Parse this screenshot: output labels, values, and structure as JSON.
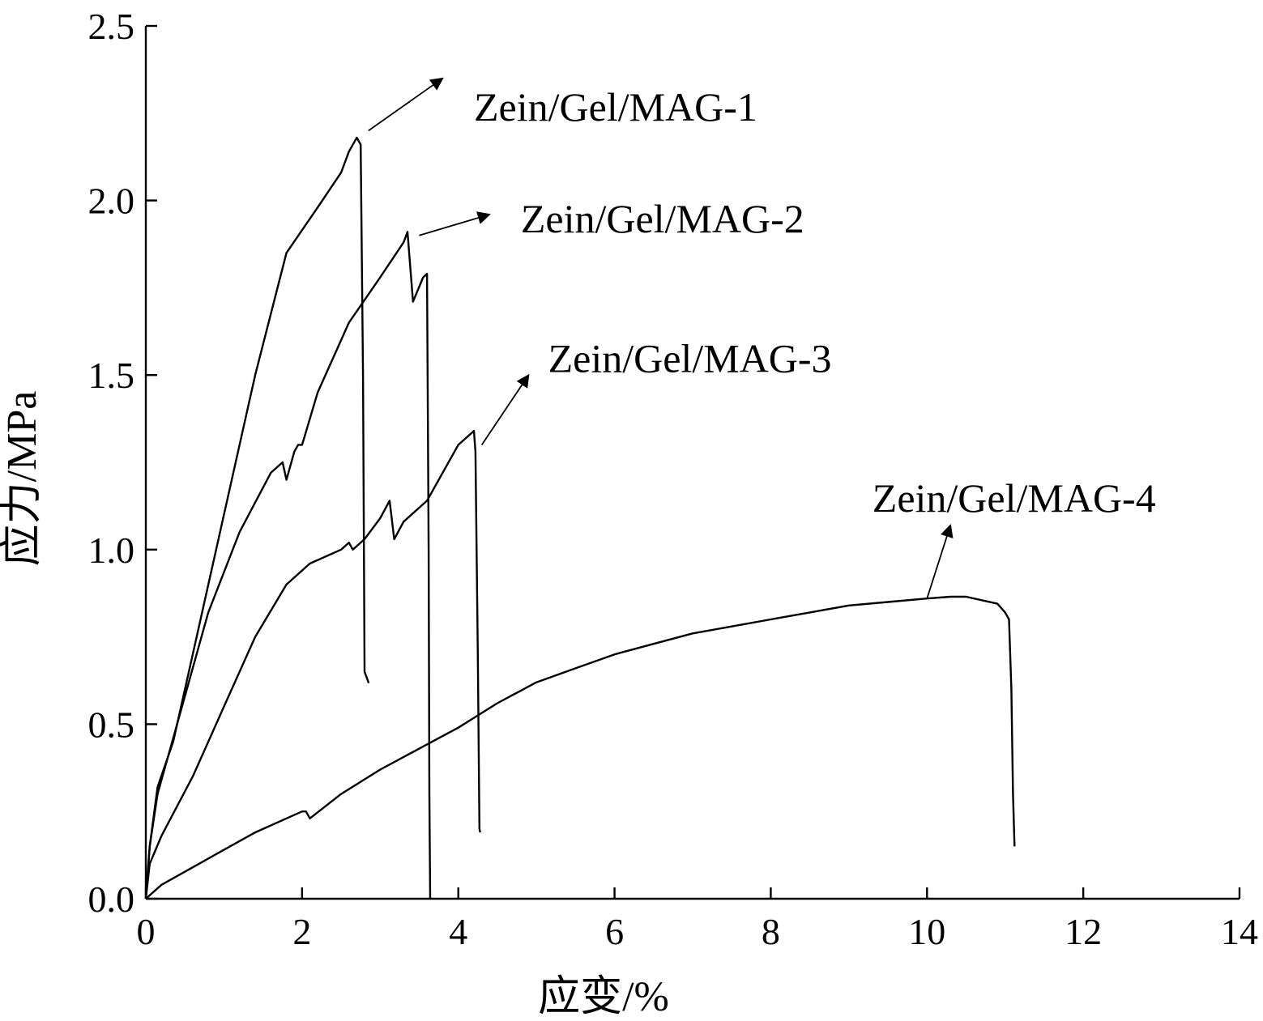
{
  "chart_data": {
    "type": "line",
    "xlabel": "应变/%",
    "ylabel": "应力/MPa",
    "xlim": [
      0,
      14
    ],
    "ylim": [
      0,
      2.5
    ],
    "xticks": [
      0,
      2,
      4,
      6,
      8,
      10,
      12,
      14
    ],
    "yticks": [
      0.0,
      0.5,
      1.0,
      1.5,
      2.0,
      2.5
    ],
    "xtick_labels": [
      "0",
      "2",
      "4",
      "6",
      "8",
      "10",
      "12",
      "14"
    ],
    "ytick_labels": [
      "0.0",
      "0.5",
      "1.0",
      "1.5",
      "2.0",
      "2.5"
    ],
    "grid": false,
    "series": [
      {
        "name": "Zein/Gel/MAG-1",
        "x": [
          0,
          0.05,
          0.15,
          0.35,
          0.6,
          1.0,
          1.4,
          1.8,
          2.2,
          2.5,
          2.6,
          2.7,
          2.75,
          2.78,
          2.8,
          2.85,
          2.86
        ],
        "y": [
          0,
          0.15,
          0.32,
          0.45,
          0.7,
          1.1,
          1.5,
          1.85,
          1.98,
          2.08,
          2.14,
          2.18,
          2.16,
          1.5,
          0.65,
          0.62,
          0.62
        ]
      },
      {
        "name": "Zein/Gel/MAG-2",
        "x": [
          0,
          0.05,
          0.15,
          0.4,
          0.8,
          1.2,
          1.6,
          1.75,
          1.8,
          1.9,
          1.95,
          2.0,
          2.2,
          2.6,
          3.0,
          3.3,
          3.35,
          3.42,
          3.55,
          3.6,
          3.62,
          3.63,
          3.64
        ],
        "y": [
          0,
          0.15,
          0.3,
          0.5,
          0.82,
          1.05,
          1.22,
          1.25,
          1.2,
          1.28,
          1.3,
          1.3,
          1.45,
          1.65,
          1.78,
          1.88,
          1.91,
          1.71,
          1.78,
          1.79,
          1.0,
          0.3,
          0.0
        ]
      },
      {
        "name": "Zein/Gel/MAG-3",
        "x": [
          0,
          0.05,
          0.2,
          0.6,
          1.0,
          1.4,
          1.8,
          2.1,
          2.5,
          2.6,
          2.65,
          2.8,
          3.0,
          3.12,
          3.18,
          3.3,
          3.6,
          3.8,
          4.0,
          4.15,
          4.2,
          4.22,
          4.25,
          4.27,
          4.28
        ],
        "y": [
          0,
          0.1,
          0.18,
          0.35,
          0.55,
          0.75,
          0.9,
          0.96,
          1.0,
          1.02,
          1.0,
          1.03,
          1.09,
          1.14,
          1.03,
          1.08,
          1.14,
          1.22,
          1.3,
          1.33,
          1.34,
          1.28,
          0.7,
          0.2,
          0.19
        ]
      },
      {
        "name": "Zein/Gel/MAG-4",
        "x": [
          0,
          0.2,
          0.6,
          1.0,
          1.4,
          1.8,
          2.0,
          2.05,
          2.1,
          2.5,
          3.0,
          3.5,
          4.0,
          4.5,
          5.0,
          5.5,
          6.0,
          6.5,
          7.0,
          7.5,
          8.0,
          8.5,
          9.0,
          9.5,
          10.0,
          10.3,
          10.5,
          10.7,
          10.9,
          11.0,
          11.05,
          11.08,
          11.1,
          11.12
        ],
        "y": [
          0,
          0.04,
          0.09,
          0.14,
          0.19,
          0.23,
          0.25,
          0.25,
          0.23,
          0.3,
          0.37,
          0.43,
          0.49,
          0.56,
          0.62,
          0.66,
          0.7,
          0.73,
          0.76,
          0.78,
          0.8,
          0.82,
          0.84,
          0.85,
          0.86,
          0.865,
          0.865,
          0.855,
          0.845,
          0.82,
          0.8,
          0.6,
          0.3,
          0.15
        ]
      }
    ],
    "annotations": [
      {
        "text": "Zein/Gel/MAG-1",
        "label_x": 4.2,
        "label_y": 2.27,
        "from": [
          2.85,
          2.2
        ],
        "to": [
          3.8,
          2.35
        ]
      },
      {
        "text": "Zein/Gel/MAG-2",
        "label_x": 4.8,
        "label_y": 1.95,
        "from": [
          3.5,
          1.9
        ],
        "to": [
          4.4,
          1.96
        ]
      },
      {
        "text": "Zein/Gel/MAG-3",
        "label_x": 5.15,
        "label_y": 1.55,
        "from": [
          4.3,
          1.3
        ],
        "to": [
          4.9,
          1.5
        ]
      },
      {
        "text": "Zein/Gel/MAG-4",
        "label_x": 9.3,
        "label_y": 1.15,
        "from": [
          10.0,
          0.86
        ],
        "to": [
          10.3,
          1.07
        ]
      }
    ]
  }
}
